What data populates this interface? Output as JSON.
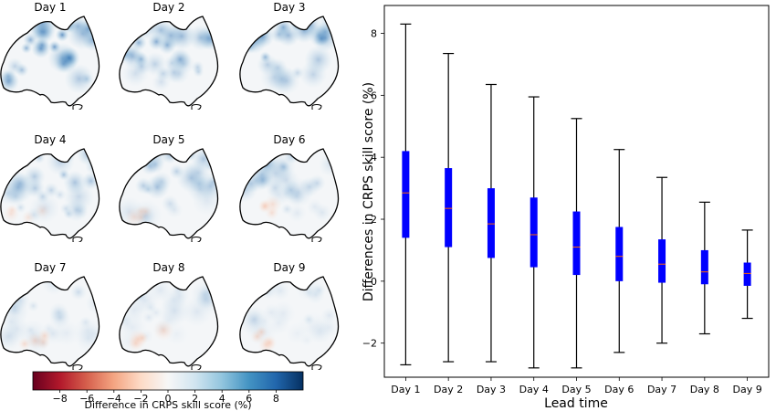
{
  "maps": {
    "panels": [
      "Day 1",
      "Day 2",
      "Day 3",
      "Day 4",
      "Day 5",
      "Day 6",
      "Day 7",
      "Day 8",
      "Day 9"
    ],
    "intensity": [
      0.8,
      0.62,
      0.64,
      0.5,
      0.42,
      0.34,
      0.22,
      0.18,
      0.16
    ],
    "colorbar": {
      "label": "Difference in CRPS skill score (%)",
      "ticks": [
        "−8",
        "−6",
        "−4",
        "−2",
        "0",
        "2",
        "4",
        "6",
        "8"
      ],
      "tick_values": [
        -8,
        -6,
        -4,
        -2,
        0,
        2,
        4,
        6,
        8
      ],
      "range": [
        -10,
        10
      ],
      "colors": [
        "#67001f",
        "#b2182b",
        "#d6604d",
        "#f4a582",
        "#fddbc7",
        "#f7f7f7",
        "#d1e5f0",
        "#92c5de",
        "#4393c3",
        "#2166ac",
        "#053061"
      ]
    }
  },
  "chart_data": {
    "type": "box",
    "xlabel": "Lead time",
    "ylabel": "Differences in CRPS skill score (%)",
    "categories": [
      "Day 1",
      "Day 2",
      "Day 3",
      "Day 4",
      "Day 5",
      "Day 6",
      "Day 7",
      "Day 8",
      "Day 9"
    ],
    "whisker_low": [
      -2.7,
      -2.6,
      -2.6,
      -2.8,
      -2.8,
      -2.3,
      -2.0,
      -1.7,
      -1.2
    ],
    "q1": [
      1.4,
      1.1,
      0.75,
      0.45,
      0.2,
      0.0,
      -0.05,
      -0.1,
      -0.15
    ],
    "median": [
      2.85,
      2.35,
      1.85,
      1.5,
      1.1,
      0.8,
      0.55,
      0.3,
      0.25
    ],
    "q3": [
      4.2,
      3.65,
      3.0,
      2.7,
      2.25,
      1.75,
      1.35,
      1.0,
      0.6
    ],
    "whisker_high": [
      8.3,
      7.35,
      6.35,
      5.95,
      5.25,
      4.25,
      3.35,
      2.55,
      1.65
    ],
    "yticks": [
      -2,
      0,
      2,
      4,
      6,
      8
    ],
    "ylim": [
      -3.1,
      8.9
    ],
    "box_color": "#0000ff",
    "median_color": "#ff6600",
    "whisker_color": "#000000",
    "grid": false
  }
}
